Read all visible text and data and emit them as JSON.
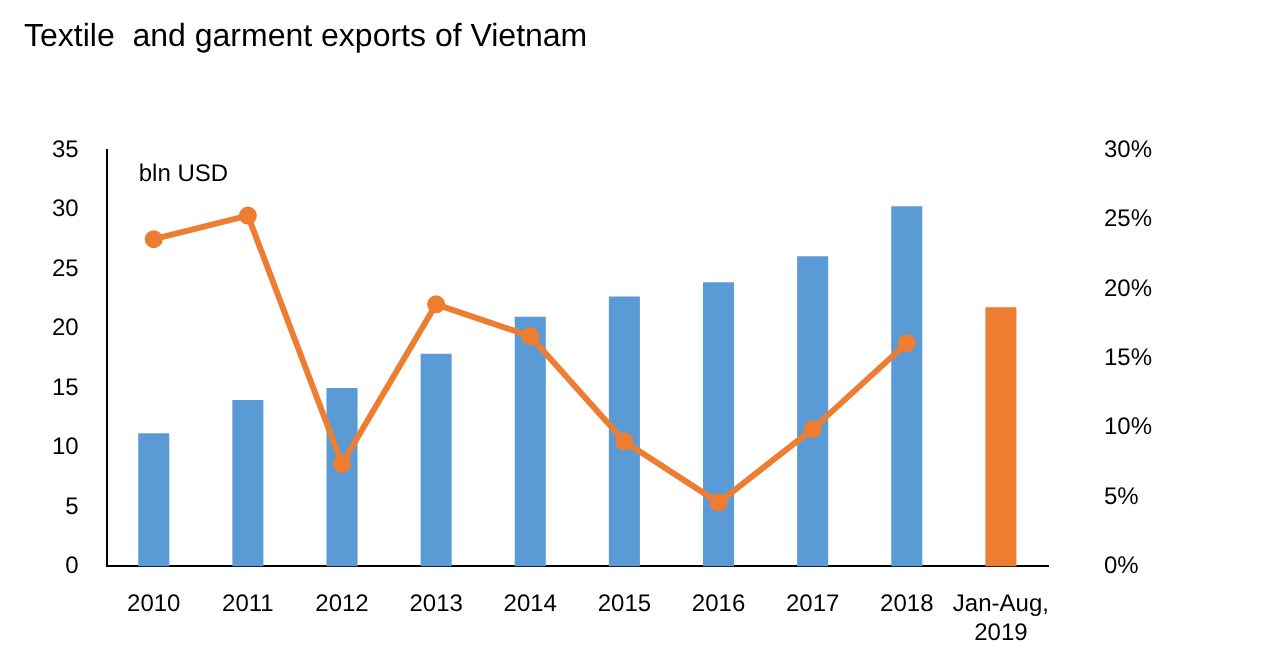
{
  "chart_data": {
    "type": "bar",
    "title": "Textile  and garment exports of Vietnam",
    "ylabel": "bln USD",
    "categories": [
      "2010",
      "2011",
      "2012",
      "2013",
      "2014",
      "2015",
      "2016",
      "2017",
      "2018",
      "Jan-Aug, 2019"
    ],
    "series": [
      {
        "colors": [
          "#5b9bd5",
          "#5b9bd5",
          "#5b9bd5",
          "#5b9bd5",
          "#5b9bd5",
          "#5b9bd5",
          "#5b9bd5",
          "#5b9bd5",
          "#5b9bd5",
          "#ed7d31"
        ],
        "values": [
          11.2,
          14.0,
          15.0,
          17.9,
          21.0,
          22.7,
          23.9,
          26.1,
          30.3,
          21.8
        ]
      },
      {
        "type": "line",
        "axis": "y2",
        "color": "#ed7d31",
        "values": [
          23.6,
          25.3,
          7.4,
          18.9,
          16.6,
          9.0,
          4.6,
          9.9,
          16.1,
          null
        ]
      }
    ],
    "ylim": [
      0,
      35
    ],
    "yticks": [
      0,
      5,
      10,
      15,
      20,
      25,
      30,
      35
    ],
    "y2lim": [
      0,
      30
    ],
    "y2ticks": [
      {
        "value": 0,
        "label": "0%"
      },
      {
        "value": 5,
        "label": "5%"
      },
      {
        "value": 10,
        "label": "10%"
      },
      {
        "value": 15,
        "label": "15%"
      },
      {
        "value": 20,
        "label": "20%"
      },
      {
        "value": 25,
        "label": "25%"
      },
      {
        "value": 30,
        "label": "30%"
      }
    ],
    "grid": false,
    "legend": false,
    "marker": "circle",
    "line_style": "solid"
  }
}
